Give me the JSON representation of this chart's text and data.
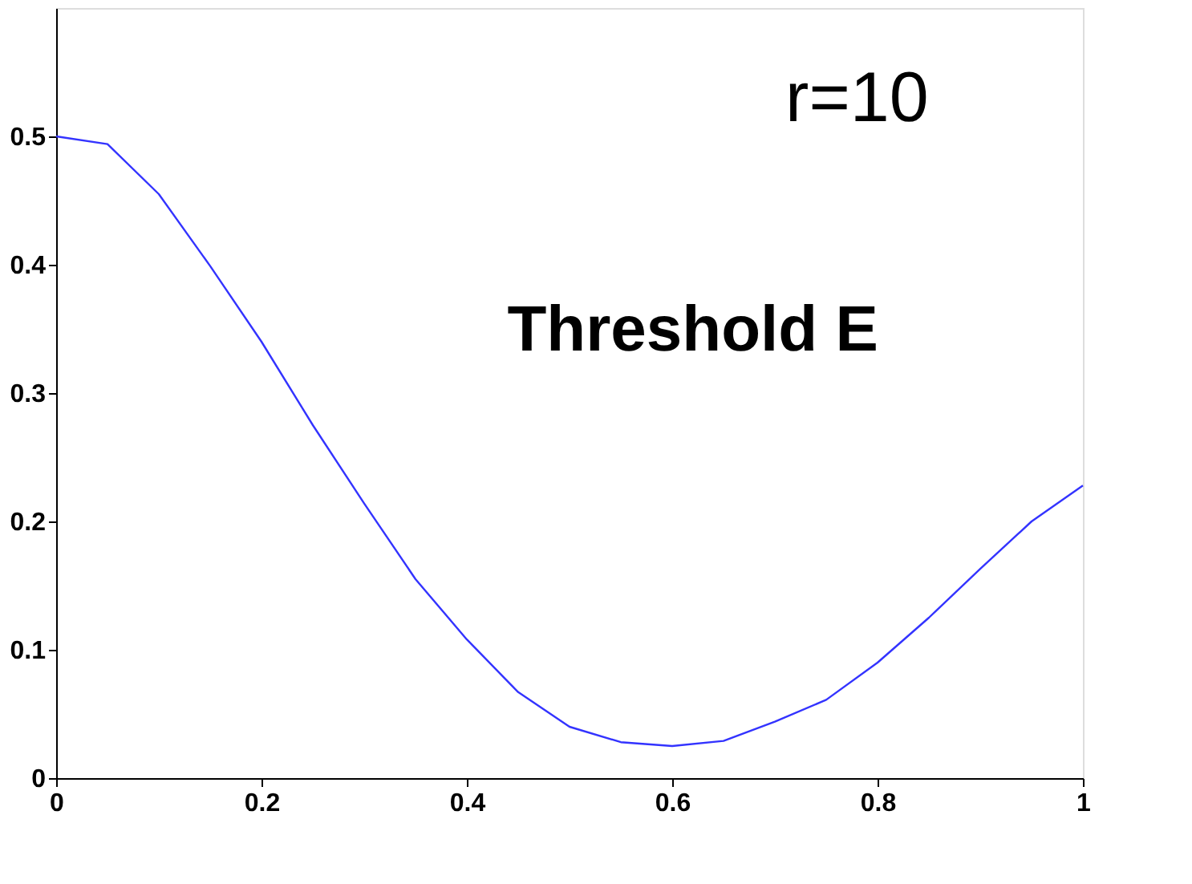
{
  "chart_data": {
    "type": "line",
    "x": [
      0,
      0.05,
      0.1,
      0.15,
      0.2,
      0.25,
      0.3,
      0.35,
      0.4,
      0.45,
      0.5,
      0.55,
      0.6,
      0.65,
      0.7,
      0.75,
      0.8,
      0.85,
      0.9,
      0.95,
      1
    ],
    "series": [
      {
        "color": "#3333ff",
        "values": [
          0.5,
          0.494,
          0.455,
          0.399,
          0.34,
          0.275,
          0.214,
          0.155,
          0.108,
          0.067,
          0.04,
          0.028,
          0.025,
          0.029,
          0.044,
          0.061,
          0.09,
          0.125,
          0.163,
          0.2,
          0.228
        ]
      }
    ],
    "xlim": [
      0,
      1
    ],
    "ylim": [
      0,
      0.6
    ],
    "xticks": [
      0,
      0.2,
      0.4,
      0.6,
      0.8,
      1
    ],
    "yticks": [
      0,
      0.1,
      0.2,
      0.3,
      0.4,
      0.5
    ],
    "grid": false,
    "annotations": [
      "r=10",
      "Threshold E"
    ]
  }
}
